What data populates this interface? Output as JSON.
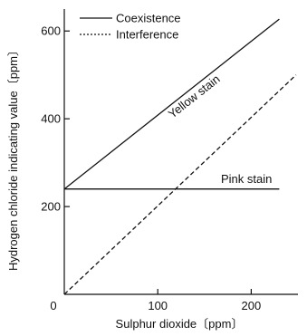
{
  "chart_data": {
    "type": "line",
    "xlabel": "Sulphur dioxide〔ppm〕",
    "ylabel": "Hydrogen chloride indicating value〔ppm〕",
    "xlim": [
      0,
      250
    ],
    "ylim": [
      0,
      650
    ],
    "xticks": [
      0,
      100,
      200
    ],
    "yticks": [
      200,
      400,
      600
    ],
    "grid": false,
    "legend_position": "top-left",
    "legend": [
      "Coexistence",
      "Interference"
    ],
    "series": [
      {
        "name": "Coexistence",
        "style": "solid",
        "label": "Yellow stain",
        "x": [
          0,
          230
        ],
        "y": [
          240,
          627
        ]
      },
      {
        "name": "Coexistence",
        "style": "solid",
        "label": "Pink stain",
        "x": [
          0,
          230
        ],
        "y": [
          240,
          240
        ]
      },
      {
        "name": "Interference",
        "style": "dashed",
        "x": [
          0,
          248
        ],
        "y": [
          0,
          500
        ]
      }
    ],
    "annotations": [
      "Yellow stain",
      "Pink stain"
    ]
  }
}
